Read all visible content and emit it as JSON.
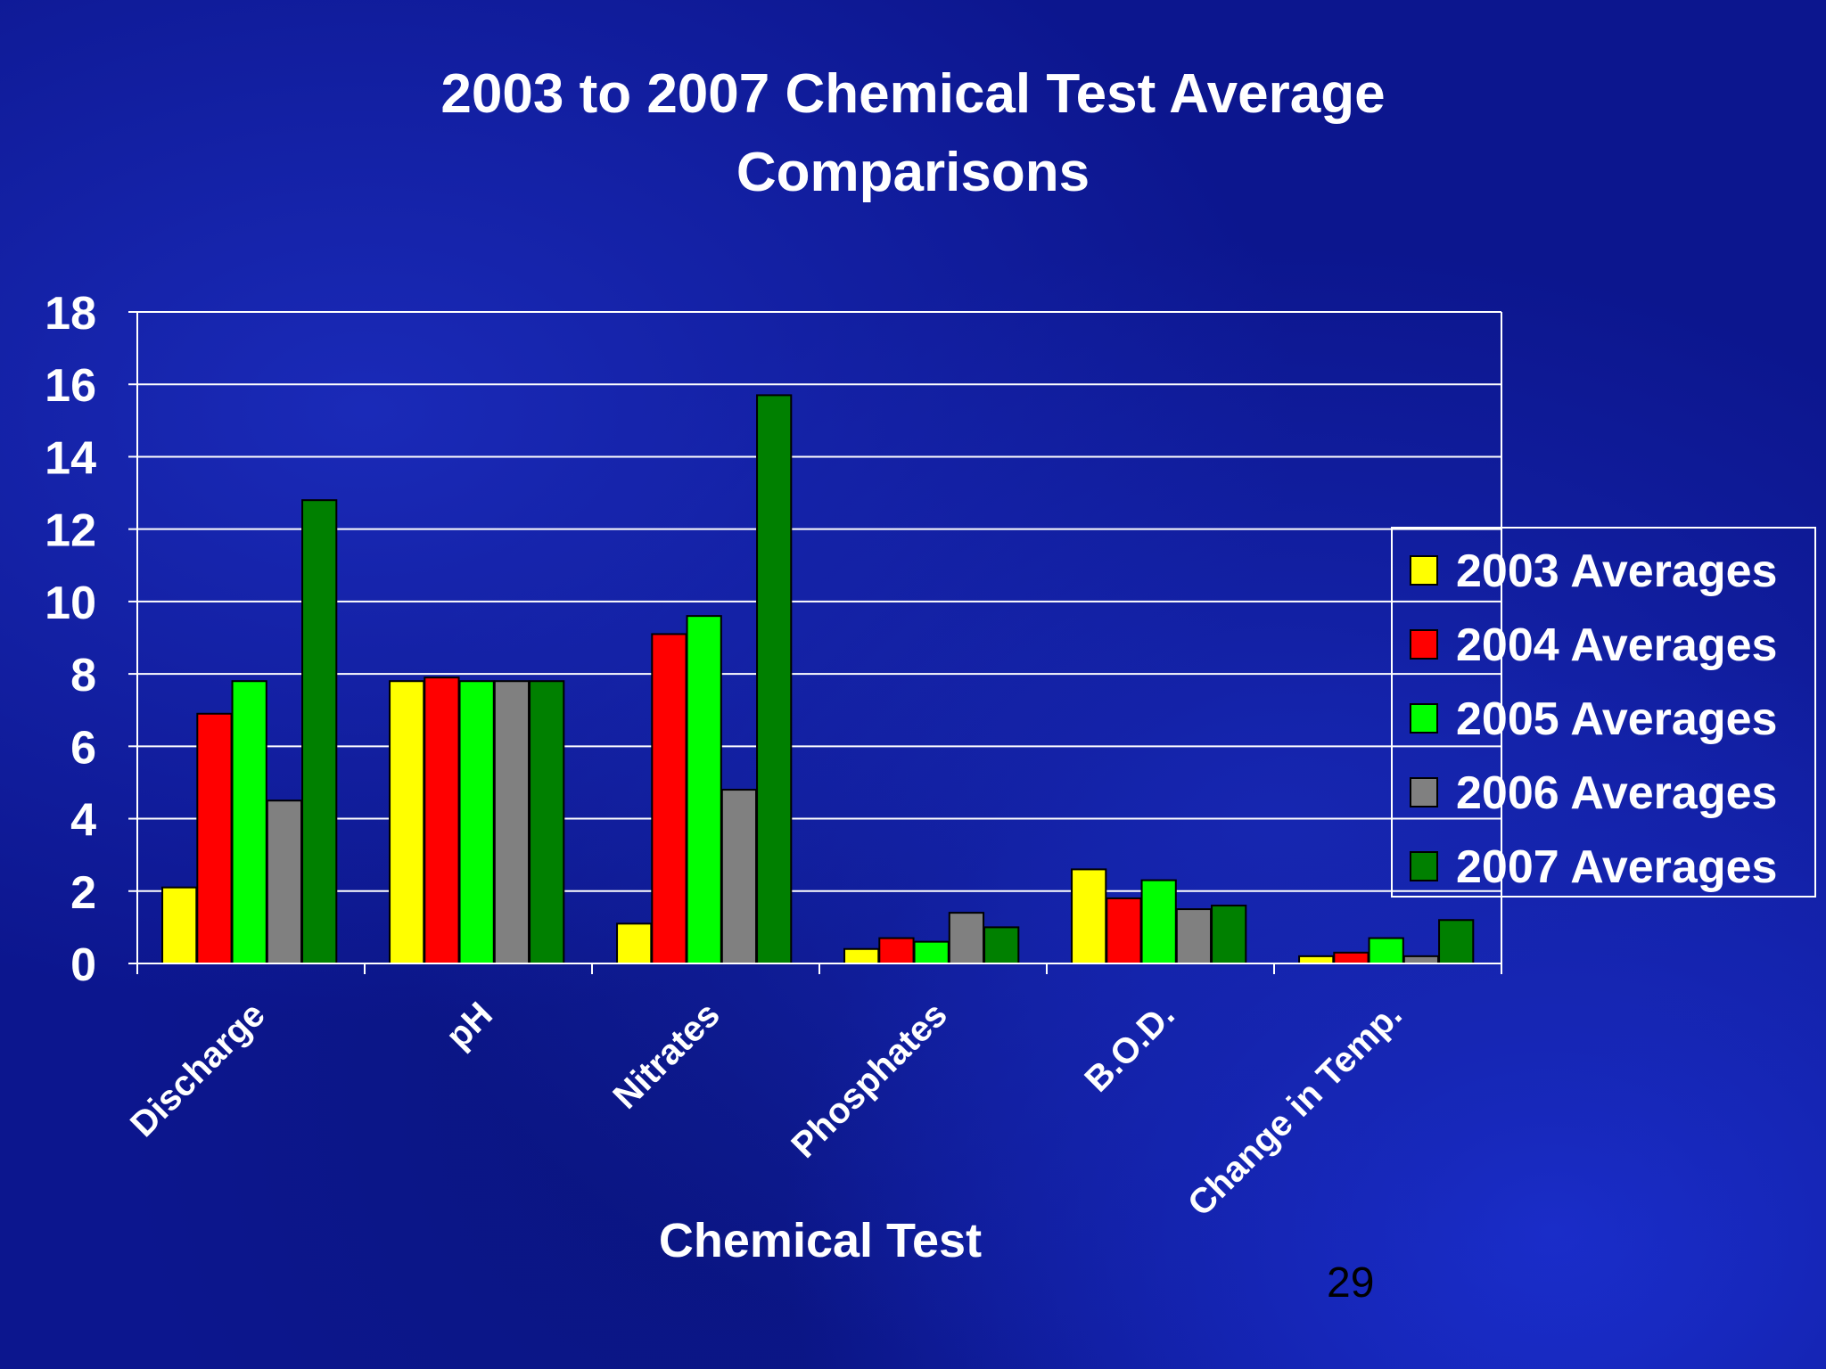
{
  "slide": {
    "title_line1": "2003 to 2007 Chemical Test Average",
    "title_line2": "Comparisons",
    "page_number": "29"
  },
  "colors": {
    "grid": "#ffffff",
    "text": "#ffffff"
  },
  "chart_data": {
    "type": "bar",
    "title": "2003 to 2007 Chemical Test Average Comparisons",
    "xlabel": "Chemical Test",
    "ylabel": "",
    "ylim": [
      0,
      18
    ],
    "yticks": [
      0,
      2,
      4,
      6,
      8,
      10,
      12,
      14,
      16,
      18
    ],
    "grid": true,
    "legend_position": "right",
    "categories": [
      "Discharge",
      "pH",
      "Nitrates",
      "Phosphates",
      "B.O.D.",
      "Change in Temp."
    ],
    "series": [
      {
        "name": "2003 Averages",
        "color": "#ffff00",
        "values": [
          2.1,
          7.8,
          1.1,
          0.4,
          2.6,
          0.2
        ]
      },
      {
        "name": "2004 Averages",
        "color": "#ff0000",
        "values": [
          6.9,
          7.9,
          9.1,
          0.7,
          1.8,
          0.3
        ]
      },
      {
        "name": "2005 Averages",
        "color": "#00ff00",
        "values": [
          7.8,
          7.8,
          9.6,
          0.6,
          2.3,
          0.7
        ]
      },
      {
        "name": "2006 Averages",
        "color": "#808080",
        "values": [
          4.5,
          7.8,
          4.8,
          1.4,
          1.5,
          0.2
        ]
      },
      {
        "name": "2007 Averages",
        "color": "#008000",
        "values": [
          12.8,
          7.8,
          15.7,
          1.0,
          1.6,
          1.2
        ]
      }
    ]
  }
}
